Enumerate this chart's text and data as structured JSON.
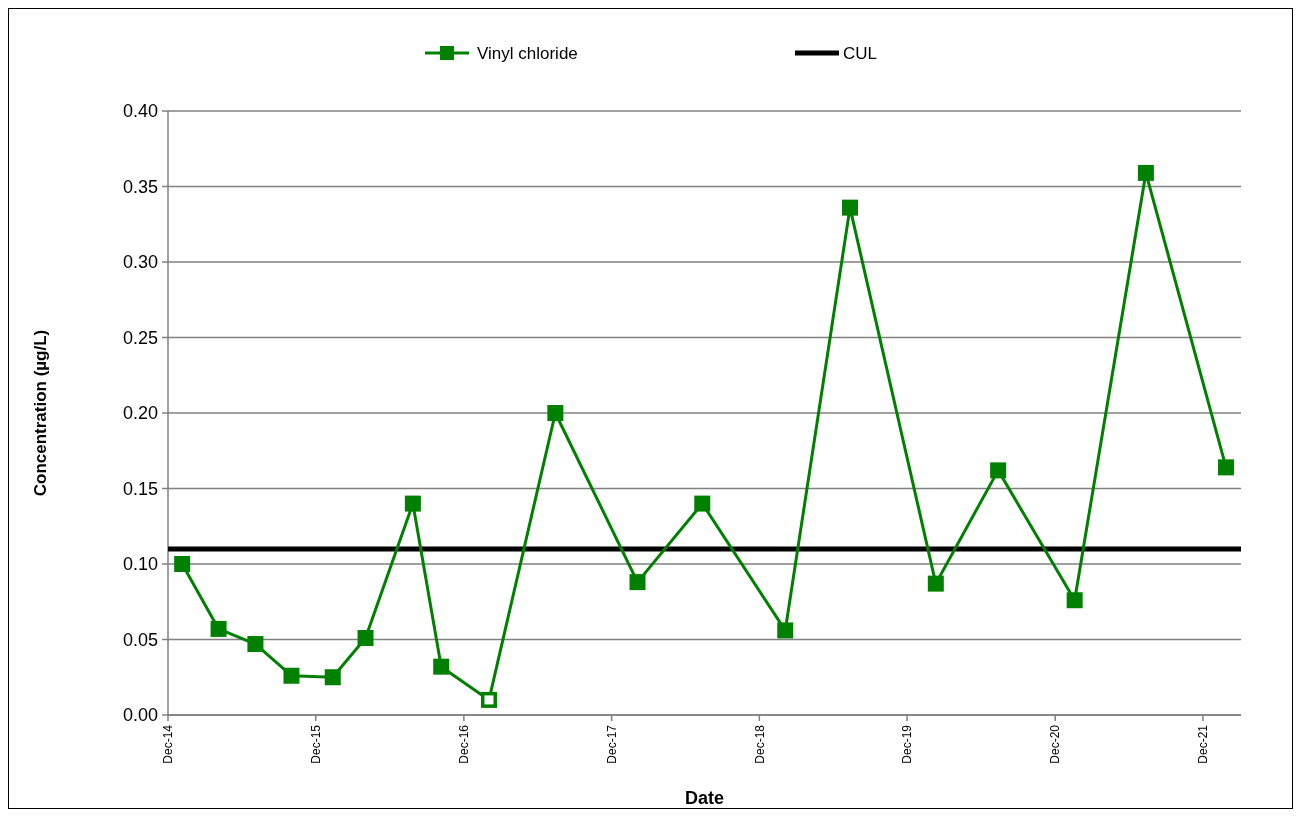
{
  "chart_data": {
    "type": "line",
    "xlabel": "Date",
    "ylabel": "Concentration (µg/L)",
    "x": [
      "2015-01-05",
      "2015-04-05",
      "2015-07-05",
      "2015-10-02",
      "2016-01-12",
      "2016-04-02",
      "2016-07-28",
      "2016-10-06",
      "2017-02-01",
      "2017-07-15",
      "2018-02-03",
      "2018-07-13",
      "2019-02-03",
      "2019-07-13",
      "2020-02-10",
      "2020-07-13",
      "2021-01-18",
      "2021-07-13",
      "2022-01-27"
    ],
    "series": [
      {
        "name": "Vinyl chloride",
        "color": "#008000",
        "values": [
          0.1,
          0.057,
          0.047,
          0.026,
          0.025,
          0.051,
          0.14,
          0.032,
          0.01,
          0.2,
          0.088,
          0.14,
          0.056,
          0.336,
          0.087,
          0.162,
          0.076,
          0.359,
          0.164
        ]
      },
      {
        "type": "scatter",
        "color": "#ffffff",
        "x": [
          "2017-02-01"
        ],
        "values": [
          0.01
        ]
      }
    ],
    "marker": "square",
    "line_style": "solid",
    "ref_lines": [
      {
        "axis": "y",
        "value": 0.11,
        "label": "CUL",
        "color": "#000000"
      }
    ],
    "xlim": [
      "2014-12-01",
      "2022-03-05"
    ],
    "xticks": [
      {
        "value": "2014-12-01",
        "label": "Dec-14"
      },
      {
        "value": "2015-12-01",
        "label": "Dec-15"
      },
      {
        "value": "2016-12-01",
        "label": "Dec-16"
      },
      {
        "value": "2017-12-01",
        "label": "Dec-17"
      },
      {
        "value": "2018-12-01",
        "label": "Dec-18"
      },
      {
        "value": "2019-12-01",
        "label": "Dec-19"
      },
      {
        "value": "2020-12-01",
        "label": "Dec-20"
      },
      {
        "value": "2021-12-01",
        "label": "Dec-21"
      }
    ],
    "ylim": [
      0,
      0.4
    ],
    "yticks": [
      {
        "value": 0,
        "label": "0.00"
      },
      {
        "value": 0.05,
        "label": "0.05"
      },
      {
        "value": 0.1,
        "label": "0.10"
      },
      {
        "value": 0.15,
        "label": "0.15"
      },
      {
        "value": 0.2,
        "label": "0.20"
      },
      {
        "value": 0.25,
        "label": "0.25"
      },
      {
        "value": 0.3,
        "label": "0.30"
      },
      {
        "value": 0.35,
        "label": "0.35"
      },
      {
        "value": 0.4,
        "label": "0.40"
      }
    ],
    "grid": "y",
    "legend": "top"
  }
}
